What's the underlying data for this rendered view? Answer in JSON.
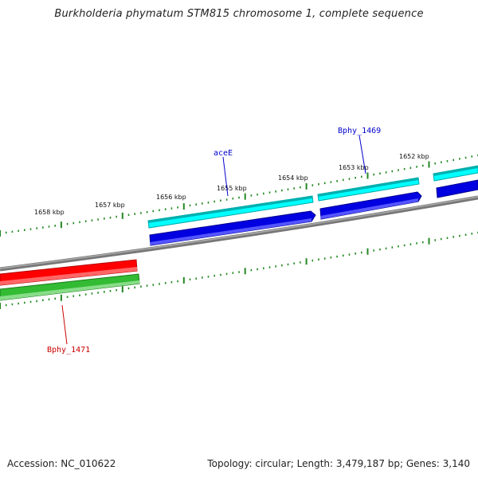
{
  "title": "Burkholderia phymatum STM815 chromosome 1, complete sequence",
  "footer": {
    "accession": "Accession: NC_010622",
    "summary": "Topology: circular; Length: 3,479,187 bp; Genes: 3,140"
  },
  "ticks": {
    "outer": [
      "1658 kbp",
      "1657 kbp",
      "1656 kbp",
      "1655 kbp",
      "1654 kbp",
      "1653 kbp",
      "1652 kbp"
    ]
  },
  "genes": {
    "aceE": "aceE",
    "bphy1469": "Bphy_1469",
    "bphy1471": "Bphy_1471"
  },
  "colors": {
    "backbone": "#808080",
    "cyan": "#00ffff",
    "blue": "#0000e0",
    "red": "#ff0000",
    "green": "#33bb33",
    "tick": "#228822",
    "blue_label": "#0000cc",
    "red_label": "#cc0000"
  }
}
